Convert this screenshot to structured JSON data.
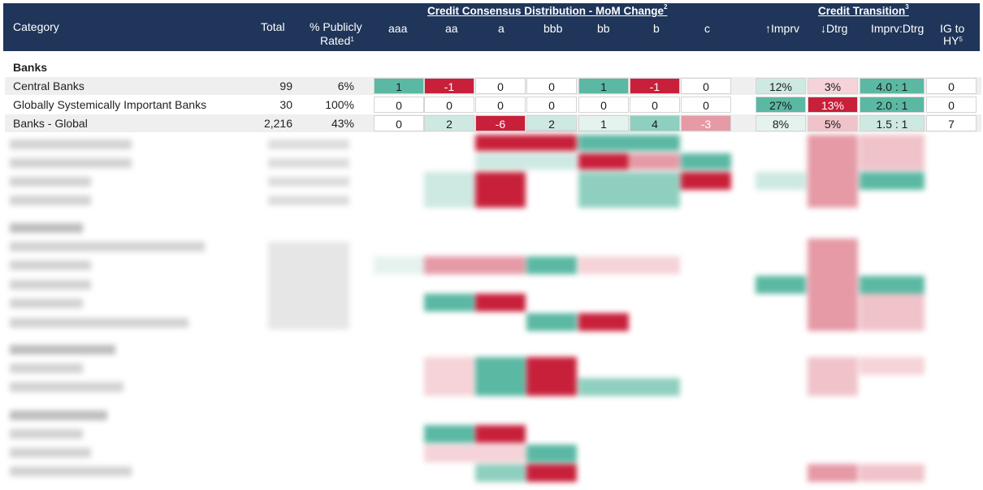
{
  "header": {
    "category": "Category",
    "total": "Total",
    "pct_line1": "% Publicly",
    "pct_line2": "Rated",
    "pct_sup": "1",
    "group1": "Credit Consensus Distribution - MoM Change",
    "group1_sup": "2",
    "group2": "Credit Transition",
    "group2_sup": "3",
    "cols": [
      "aaa",
      "aa",
      "a",
      "bbb",
      "bb",
      "b",
      "c"
    ],
    "impr": "↑Imprv",
    "dtrg": "↓Dtrg",
    "ratio": "Imprv:Dtrg",
    "ig_line1": "IG to",
    "ig_line2": "HY",
    "ig_sup": "5"
  },
  "sections": {
    "banks": "Banks"
  },
  "rows": [
    {
      "category": "Central Banks",
      "total": "99",
      "pct": "6%",
      "mom": [
        "1",
        "-1",
        "0",
        "0",
        "1",
        "-1",
        "0"
      ],
      "mom_bg": [
        "#5bb8a3",
        "#c8203a",
        "#ffffff",
        "#ffffff",
        "#5bb8a3",
        "#c8203a",
        "#ffffff"
      ],
      "mom_fg": [
        "#1a1a1a",
        "#ffffff",
        "#1a1a1a",
        "#1a1a1a",
        "#1a1a1a",
        "#ffffff",
        "#1a1a1a"
      ],
      "impr": "12%",
      "impr_bg": "#cde9e2",
      "dtrg": "3%",
      "dtrg_bg": "#f5d3d8",
      "ratio": "4.0 : 1",
      "ratio_bg": "#5bb8a3",
      "ig": "0"
    },
    {
      "category": "Globally Systemically Important Banks",
      "total": "30",
      "pct": "100%",
      "mom": [
        "0",
        "0",
        "0",
        "0",
        "0",
        "0",
        "0"
      ],
      "mom_bg": [
        "#ffffff",
        "#ffffff",
        "#ffffff",
        "#ffffff",
        "#ffffff",
        "#ffffff",
        "#ffffff"
      ],
      "mom_fg": [
        "#1a1a1a",
        "#1a1a1a",
        "#1a1a1a",
        "#1a1a1a",
        "#1a1a1a",
        "#1a1a1a",
        "#1a1a1a"
      ],
      "impr": "27%",
      "impr_bg": "#5bb8a3",
      "dtrg": "13%",
      "dtrg_bg": "#c8203a",
      "ratio": "2.0 : 1",
      "ratio_bg": "#5bb8a3",
      "ig": "0"
    },
    {
      "category": "Banks - Global",
      "total": "2,216",
      "pct": "43%",
      "mom": [
        "0",
        "2",
        "-6",
        "2",
        "1",
        "4",
        "-3"
      ],
      "mom_bg": [
        "#ffffff",
        "#cde9e2",
        "#c8203a",
        "#cde9e2",
        "#e5f3ef",
        "#8fcfbf",
        "#e59aa6"
      ],
      "mom_fg": [
        "#1a1a1a",
        "#1a1a1a",
        "#ffffff",
        "#1a1a1a",
        "#1a1a1a",
        "#1a1a1a",
        "#ffffff"
      ],
      "impr": "8%",
      "impr_bg": "#e5f3ef",
      "dtrg": "5%",
      "dtrg_bg": "#f0c3ca",
      "ratio": "1.5 : 1",
      "ratio_bg": "#cde9e2",
      "ig": "7"
    }
  ]
}
